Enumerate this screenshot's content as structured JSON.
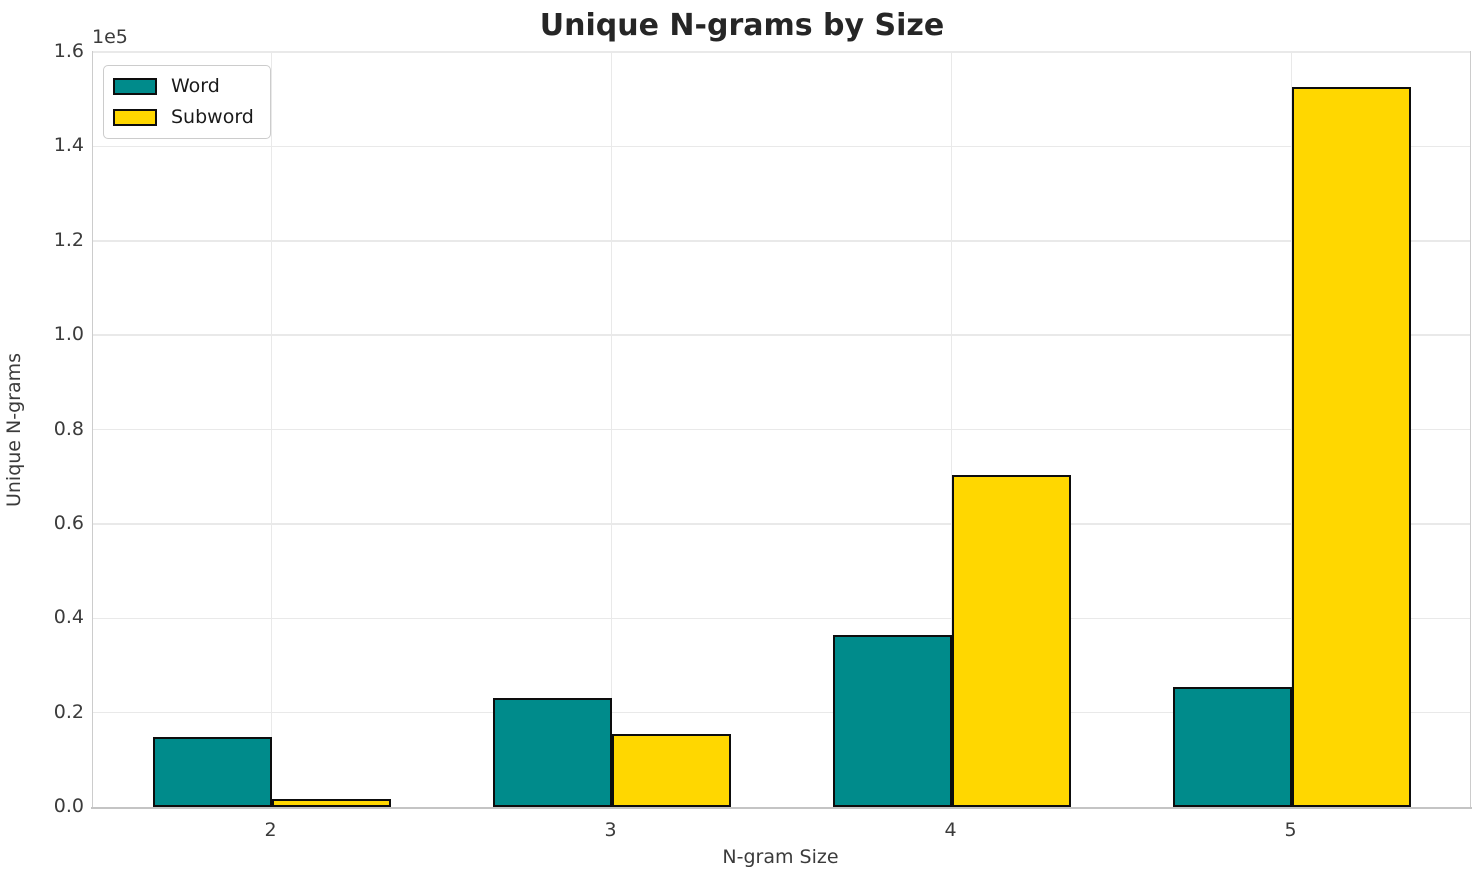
{
  "chart_data": {
    "type": "bar",
    "title": "Unique N-grams by Size",
    "xlabel": "N-gram Size",
    "ylabel": "Unique N-grams",
    "y_offset_text": "1e5",
    "categories": [
      "2",
      "3",
      "4",
      "5"
    ],
    "series": [
      {
        "name": "Word",
        "color": "#008b8b",
        "values": [
          14800,
          23200,
          36400,
          25500
        ]
      },
      {
        "name": "Subword",
        "color": "#ffd700",
        "values": [
          1800,
          15500,
          70300,
          152500
        ]
      }
    ],
    "ylim": [
      0,
      160000
    ],
    "ytick_labels": [
      "0.0",
      "0.2",
      "0.4",
      "0.6",
      "0.8",
      "1.0",
      "1.2",
      "1.4",
      "1.6"
    ],
    "ytick_values": [
      0,
      20000,
      40000,
      60000,
      80000,
      100000,
      120000,
      140000,
      160000
    ],
    "grid": true,
    "legend_position": "upper left",
    "bar_edge_color": "#0d0d0d",
    "bar_group_width_fraction": 0.35
  }
}
